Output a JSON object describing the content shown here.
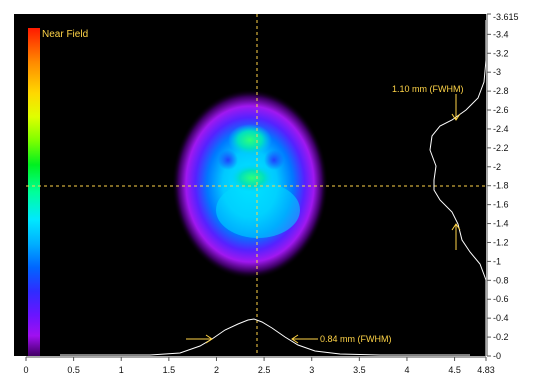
{
  "view": {
    "mode_label": "Near Field",
    "fwhm_x_label": "0.84 mm (FWHM)",
    "fwhm_y_label": "1.10 mm (FWHM)"
  },
  "axes": {
    "x_ticks": [
      "0",
      "0.5",
      "1",
      "1.5",
      "2",
      "2.5",
      "3",
      "3.5",
      "4",
      "4.5",
      "4.83"
    ],
    "y_ticks": [
      "0",
      "0.2",
      "0.4",
      "0.6",
      "0.8",
      "1",
      "1.2",
      "1.4",
      "1.6",
      "1.8",
      "2",
      "2.2",
      "2.4",
      "2.6",
      "2.8",
      "3",
      "3.2",
      "3.4",
      "3.615"
    ]
  },
  "colors": {
    "background": "#000000",
    "crosshair": "#ffd447",
    "profile": "#ffffff",
    "annotation": "#ffd447"
  }
}
